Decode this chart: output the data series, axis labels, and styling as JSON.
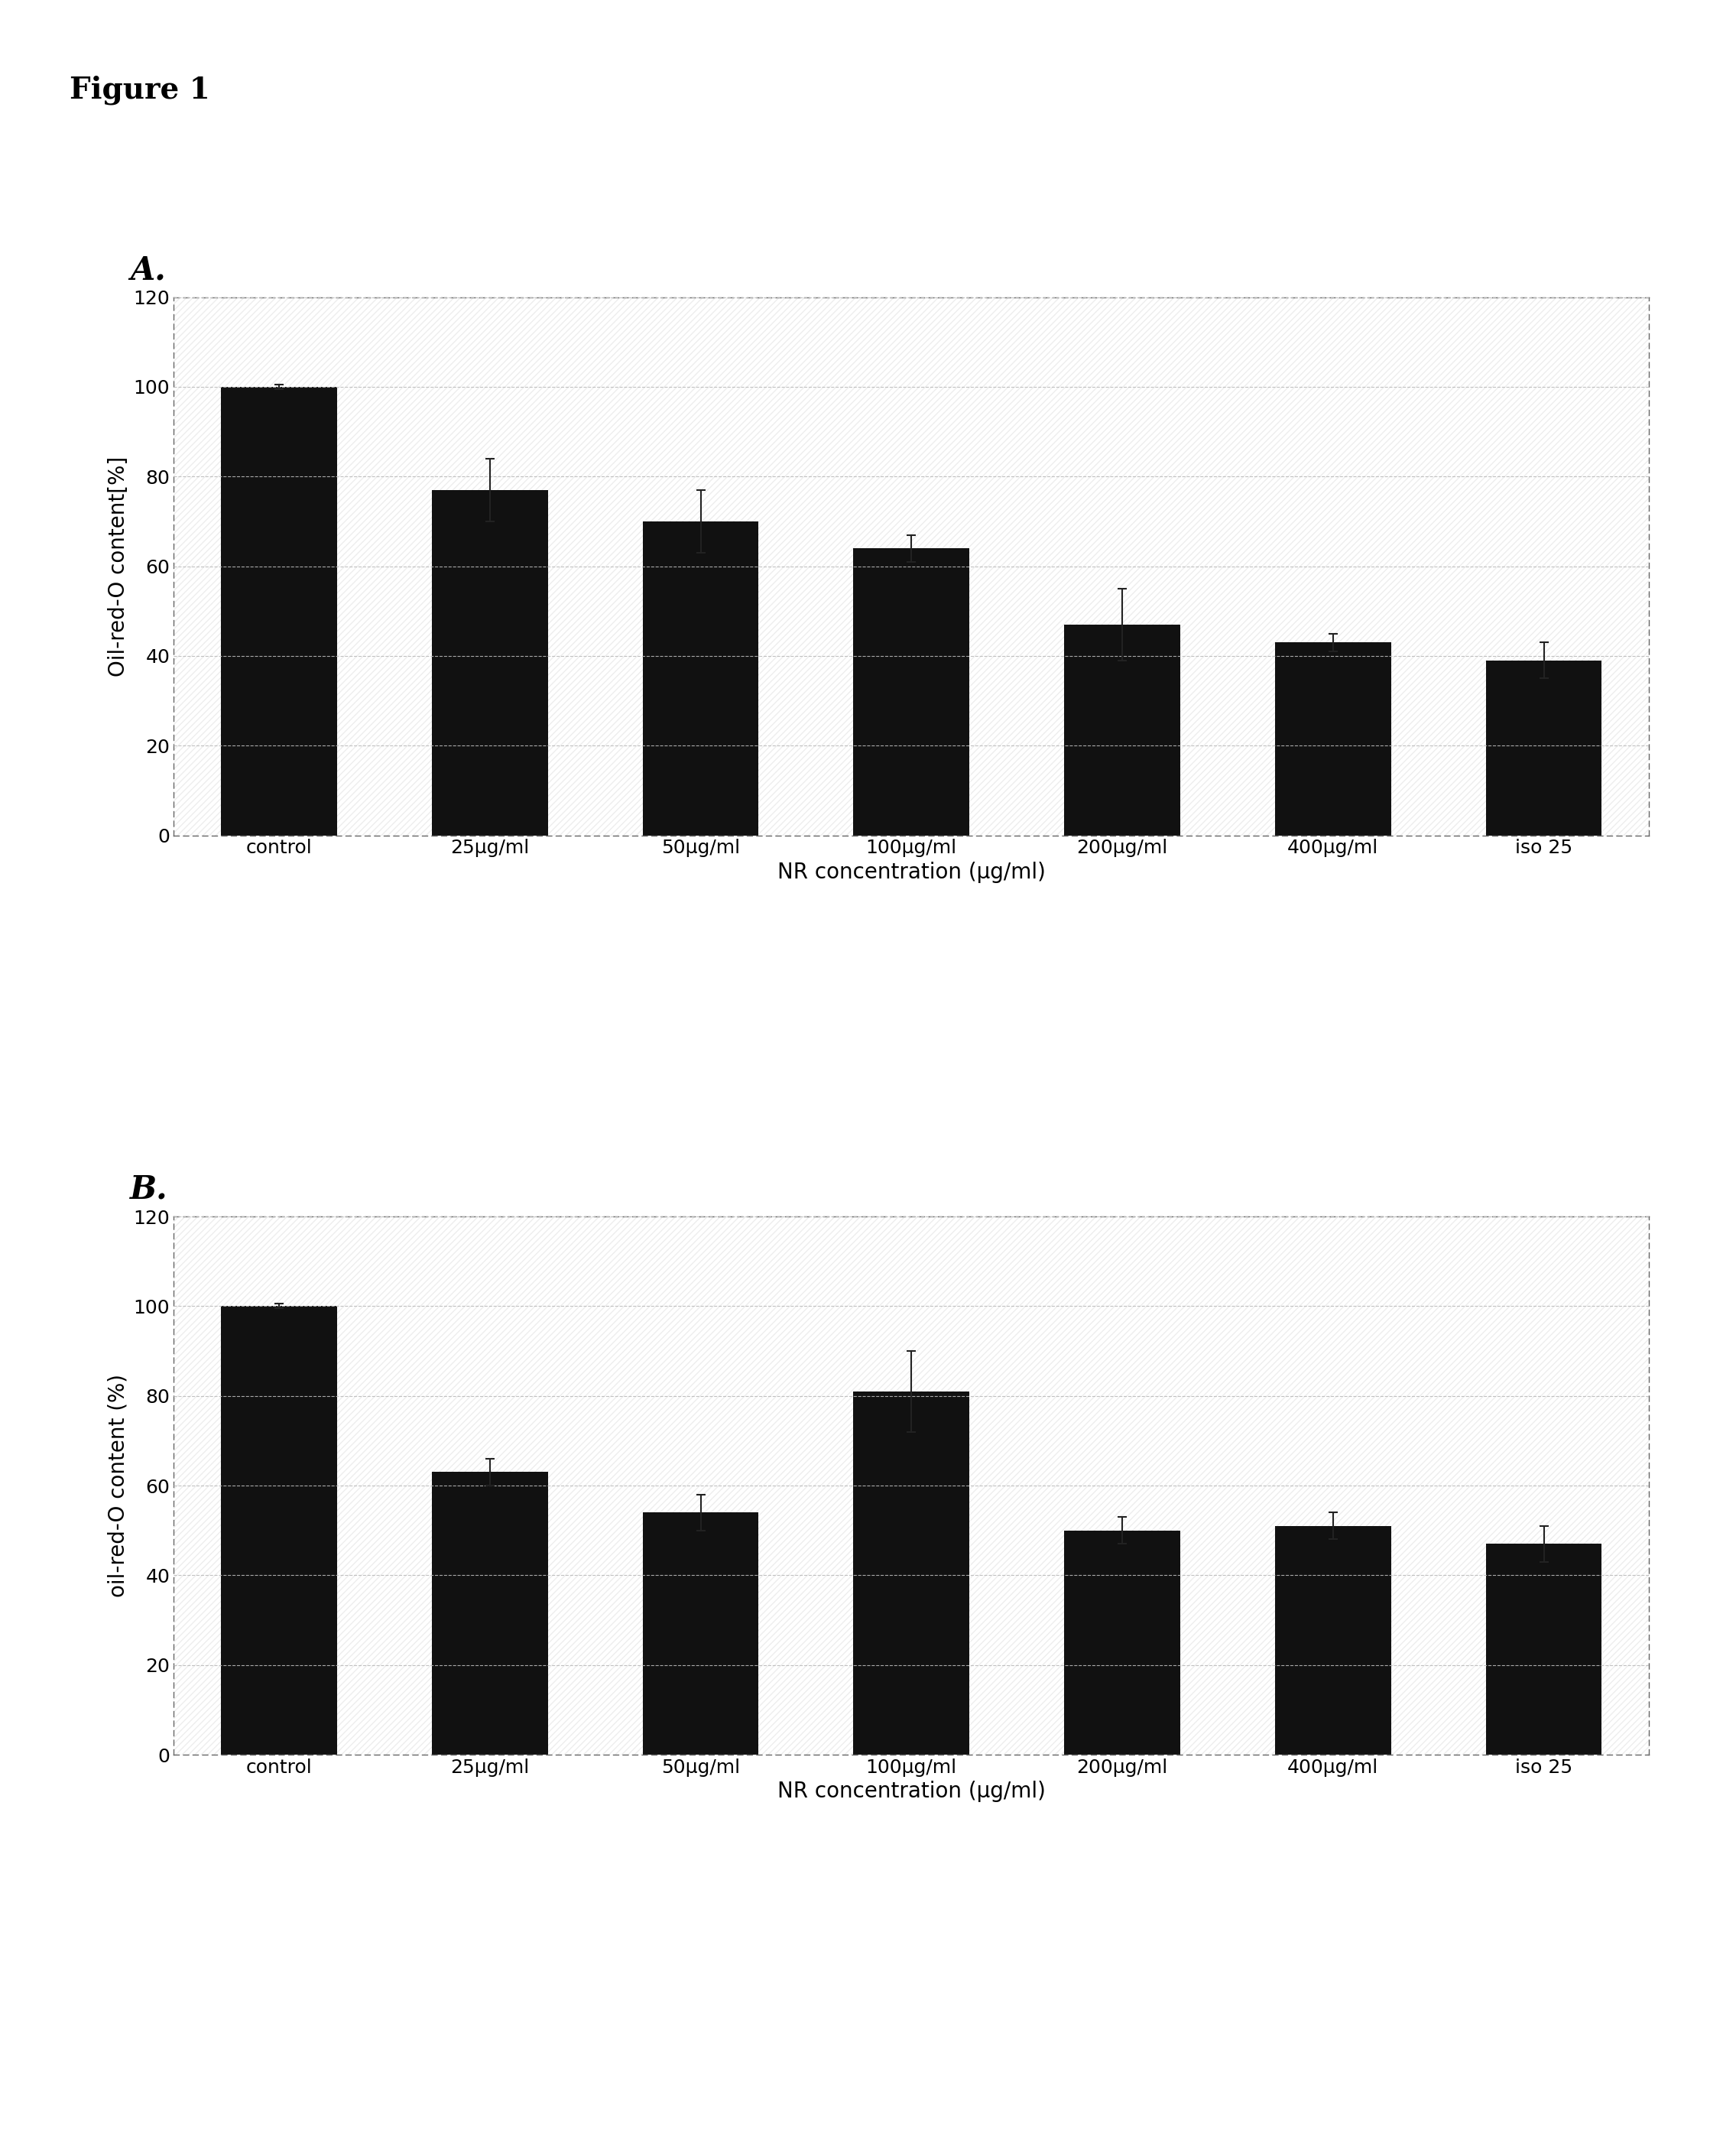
{
  "figure_label": "Figure 1",
  "panel_A_label": "A.",
  "panel_B_label": "B.",
  "categories": [
    "control",
    "25μg/ml",
    "50μg/ml",
    "100μg/ml",
    "200μg/ml",
    "400μg/ml",
    "iso 25"
  ],
  "values_A": [
    100,
    77,
    70,
    64,
    47,
    43,
    39
  ],
  "errors_A": [
    0.5,
    7,
    7,
    3,
    8,
    2,
    4
  ],
  "values_B": [
    100,
    63,
    54,
    81,
    50,
    51,
    47
  ],
  "errors_B": [
    0.5,
    3,
    4,
    9,
    3,
    3,
    4
  ],
  "ylabel_A": "Oil-red-O content[%]",
  "ylabel_B": "oil-red-O content (%)",
  "xlabel": "NR concentration (μg/ml)",
  "ylim": [
    0,
    120
  ],
  "yticks": [
    0,
    20,
    40,
    60,
    80,
    100,
    120
  ],
  "bar_color": "#111111",
  "bar_width": 0.55,
  "background_color": "#ffffff",
  "grid_color": "#bbbbbb",
  "figure_label_fontsize": 28,
  "panel_label_fontsize": 30,
  "axis_label_fontsize": 20,
  "tick_fontsize": 18
}
